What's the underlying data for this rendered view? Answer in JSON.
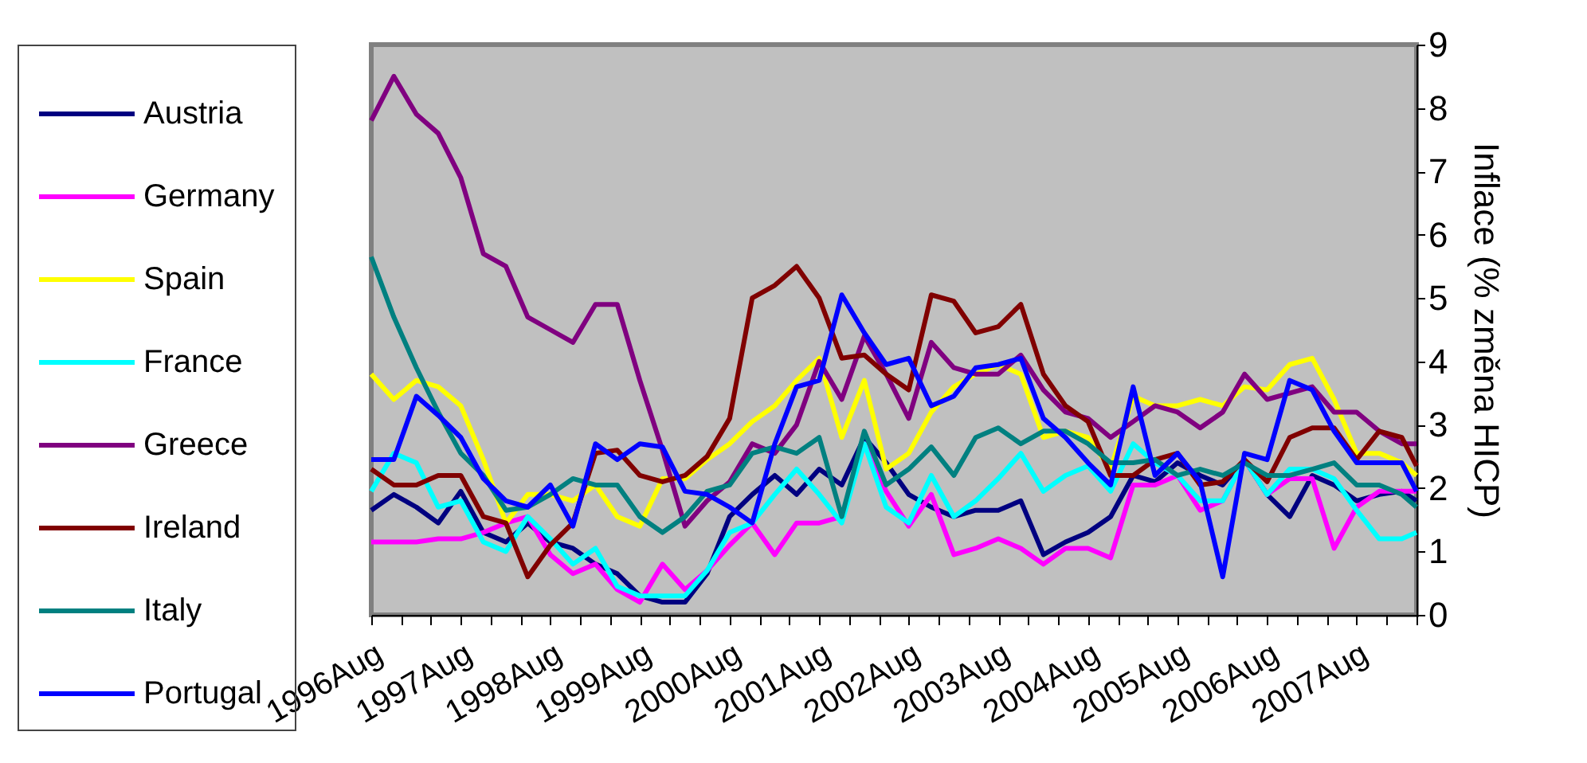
{
  "chart_data": {
    "type": "line",
    "ylabel": "Inflace (% změna HICP)",
    "legend": "left",
    "ylim": [
      0,
      9
    ],
    "yticks": [
      0,
      1,
      2,
      3,
      4,
      5,
      6,
      7,
      8,
      9
    ],
    "xlim": [
      "1996-08",
      "2008-04"
    ],
    "xticks": [
      {
        "value": "1996-08",
        "label": "1996Aug"
      },
      {
        "value": "1996-12",
        "label": null
      },
      {
        "value": "1997-04",
        "label": null
      },
      {
        "value": "1997-08",
        "label": "1997Aug"
      },
      {
        "value": "1997-12",
        "label": null
      },
      {
        "value": "1998-04",
        "label": null
      },
      {
        "value": "1998-08",
        "label": "1998Aug"
      },
      {
        "value": "1998-12",
        "label": null
      },
      {
        "value": "1999-04",
        "label": null
      },
      {
        "value": "1999-08",
        "label": "1999Aug"
      },
      {
        "value": "1999-12",
        "label": null
      },
      {
        "value": "2000-04",
        "label": null
      },
      {
        "value": "2000-08",
        "label": "2000Aug"
      },
      {
        "value": "2000-12",
        "label": null
      },
      {
        "value": "2001-04",
        "label": null
      },
      {
        "value": "2001-08",
        "label": "2001Aug"
      },
      {
        "value": "2001-12",
        "label": null
      },
      {
        "value": "2002-04",
        "label": null
      },
      {
        "value": "2002-08",
        "label": "2002Aug"
      },
      {
        "value": "2002-12",
        "label": null
      },
      {
        "value": "2003-04",
        "label": null
      },
      {
        "value": "2003-08",
        "label": "2003Aug"
      },
      {
        "value": "2003-12",
        "label": null
      },
      {
        "value": "2004-04",
        "label": null
      },
      {
        "value": "2004-08",
        "label": "2004Aug"
      },
      {
        "value": "2004-12",
        "label": null
      },
      {
        "value": "2005-04",
        "label": null
      },
      {
        "value": "2005-08",
        "label": "2005Aug"
      },
      {
        "value": "2005-12",
        "label": null
      },
      {
        "value": "2006-04",
        "label": null
      },
      {
        "value": "2006-08",
        "label": "2006Aug"
      },
      {
        "value": "2006-12",
        "label": null
      },
      {
        "value": "2007-04",
        "label": null
      },
      {
        "value": "2007-08",
        "label": "2007Aug"
      },
      {
        "value": "2007-12",
        "label": null
      },
      {
        "value": "2008-04",
        "label": null
      }
    ],
    "x": [
      "1996-08",
      "1996-11",
      "1997-02",
      "1997-05",
      "1997-08",
      "1997-11",
      "1998-02",
      "1998-05",
      "1998-08",
      "1998-11",
      "1999-02",
      "1999-05",
      "1999-08",
      "1999-11",
      "2000-02",
      "2000-05",
      "2000-08",
      "2000-11",
      "2001-02",
      "2001-05",
      "2001-08",
      "2001-11",
      "2002-02",
      "2002-05",
      "2002-08",
      "2002-11",
      "2003-02",
      "2003-05",
      "2003-08",
      "2003-11",
      "2004-02",
      "2004-05",
      "2004-08",
      "2004-11",
      "2005-02",
      "2005-05",
      "2005-08",
      "2005-11",
      "2006-02",
      "2006-05",
      "2006-08",
      "2006-11",
      "2007-02",
      "2007-05",
      "2007-08",
      "2007-11",
      "2008-02",
      "2008-04"
    ],
    "series": [
      {
        "name": "Austria",
        "color": "#000080",
        "values": [
          1.65,
          1.9,
          1.7,
          1.45,
          1.95,
          1.3,
          1.15,
          1.45,
          1.15,
          1.05,
          0.8,
          0.65,
          0.3,
          0.2,
          0.2,
          0.65,
          1.55,
          1.9,
          2.2,
          1.9,
          2.3,
          2.05,
          2.8,
          2.4,
          1.9,
          1.7,
          1.55,
          1.65,
          1.65,
          1.8,
          0.95,
          1.15,
          1.3,
          1.55,
          2.2,
          2.1,
          2.4,
          2.2,
          2.05,
          2.45,
          1.9,
          1.55,
          2.2,
          2.05,
          1.8,
          1.9,
          1.95,
          1.8
        ]
      },
      {
        "name": "Germany",
        "color": "#ff00ff",
        "values": [
          1.15,
          1.15,
          1.15,
          1.2,
          1.2,
          1.3,
          1.45,
          1.55,
          0.95,
          0.65,
          0.8,
          0.4,
          0.2,
          0.8,
          0.4,
          0.7,
          1.1,
          1.45,
          0.95,
          1.45,
          1.45,
          1.55,
          2.7,
          1.95,
          1.4,
          1.9,
          0.95,
          1.05,
          1.2,
          1.05,
          0.8,
          1.05,
          1.05,
          0.9,
          2.05,
          2.05,
          2.2,
          1.65,
          1.8,
          2.45,
          1.9,
          2.15,
          2.15,
          1.05,
          1.7,
          1.95,
          1.95,
          1.95
        ]
      },
      {
        "name": "Spain",
        "color": "#ffff00",
        "values": [
          3.8,
          3.4,
          3.7,
          3.6,
          3.3,
          2.45,
          1.45,
          1.9,
          1.9,
          1.8,
          2.05,
          1.55,
          1.4,
          2.15,
          2.15,
          2.45,
          2.7,
          3.05,
          3.3,
          3.7,
          4.05,
          2.8,
          3.7,
          2.3,
          2.55,
          3.2,
          3.6,
          3.8,
          3.95,
          3.8,
          2.8,
          2.9,
          2.8,
          2.3,
          3.45,
          3.3,
          3.3,
          3.4,
          3.3,
          3.6,
          3.55,
          3.95,
          4.05,
          3.4,
          2.55,
          2.55,
          2.4,
          2.2
        ]
      },
      {
        "name": "France",
        "color": "#00ffff",
        "values": [
          1.95,
          2.55,
          2.4,
          1.7,
          1.8,
          1.15,
          1.0,
          1.55,
          1.2,
          0.8,
          1.05,
          0.45,
          0.3,
          0.3,
          0.3,
          0.7,
          1.3,
          1.45,
          1.9,
          2.3,
          1.9,
          1.45,
          2.7,
          1.7,
          1.45,
          2.2,
          1.55,
          1.8,
          2.15,
          2.55,
          1.95,
          2.2,
          2.35,
          1.95,
          2.7,
          2.4,
          2.2,
          1.8,
          1.8,
          2.45,
          1.9,
          2.3,
          2.3,
          2.15,
          1.65,
          1.2,
          1.2,
          1.3
        ]
      },
      {
        "name": "Greece",
        "color": "#800080",
        "values": [
          7.8,
          8.5,
          7.9,
          7.6,
          6.9,
          5.7,
          5.5,
          4.7,
          4.5,
          4.3,
          4.9,
          4.9,
          3.7,
          2.6,
          1.4,
          1.8,
          2.1,
          2.7,
          2.55,
          3.0,
          4.0,
          3.4,
          4.4,
          3.8,
          3.1,
          4.3,
          3.9,
          3.8,
          3.8,
          4.1,
          3.55,
          3.2,
          3.1,
          2.8,
          3.05,
          3.3,
          3.2,
          2.95,
          3.2,
          3.8,
          3.4,
          3.5,
          3.6,
          3.2,
          3.2,
          2.9,
          2.7,
          2.7
        ]
      },
      {
        "name": "Ireland",
        "color": "#800000",
        "values": [
          2.3,
          2.05,
          2.05,
          2.2,
          2.2,
          1.55,
          1.45,
          0.6,
          1.1,
          1.45,
          2.55,
          2.6,
          2.2,
          2.1,
          2.2,
          2.5,
          3.1,
          5.0,
          5.2,
          5.5,
          5.0,
          4.05,
          4.1,
          3.8,
          3.55,
          5.05,
          4.95,
          4.45,
          4.55,
          4.9,
          3.8,
          3.3,
          3.05,
          2.2,
          2.2,
          2.45,
          2.55,
          2.05,
          2.1,
          2.45,
          2.1,
          2.8,
          2.95,
          2.95,
          2.45,
          2.9,
          2.8,
          2.35
        ]
      },
      {
        "name": "Italy",
        "color": "#008080",
        "values": [
          5.65,
          4.7,
          3.9,
          3.2,
          2.55,
          2.2,
          1.65,
          1.7,
          1.9,
          2.15,
          2.05,
          2.05,
          1.55,
          1.3,
          1.55,
          1.95,
          2.05,
          2.55,
          2.65,
          2.55,
          2.8,
          1.55,
          2.9,
          2.05,
          2.3,
          2.65,
          2.2,
          2.8,
          2.95,
          2.7,
          2.9,
          2.9,
          2.7,
          2.4,
          2.4,
          2.45,
          2.2,
          2.3,
          2.2,
          2.4,
          2.2,
          2.2,
          2.3,
          2.4,
          2.05,
          2.05,
          1.9,
          1.7
        ]
      },
      {
        "name": "Portugal",
        "color": "#0000ff",
        "values": [
          2.45,
          2.45,
          3.45,
          3.15,
          2.8,
          2.15,
          1.8,
          1.7,
          2.05,
          1.4,
          2.7,
          2.45,
          2.7,
          2.65,
          1.95,
          1.9,
          1.7,
          1.45,
          2.7,
          3.6,
          3.7,
          5.05,
          4.45,
          3.95,
          4.05,
          3.3,
          3.45,
          3.9,
          3.95,
          4.05,
          3.1,
          2.8,
          2.4,
          2.05,
          3.6,
          2.2,
          2.55,
          2.1,
          0.6,
          2.55,
          2.45,
          3.7,
          3.55,
          2.9,
          2.4,
          2.4,
          2.4,
          1.95
        ]
      }
    ]
  }
}
